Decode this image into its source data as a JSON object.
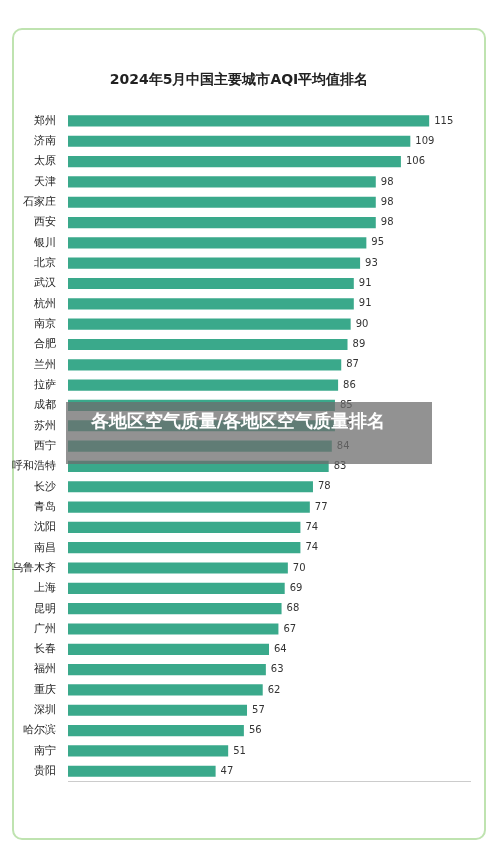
{
  "chart_data": {
    "type": "bar",
    "orientation": "horizontal",
    "title": "2024年5月中国主要城市AQI平均值排名",
    "annotation": "各地区空气质量/各地区空气质量排名",
    "categories": [
      "郑州",
      "济南",
      "太原",
      "天津",
      "石家庄",
      "西安",
      "银川",
      "北京",
      "武汉",
      "杭州",
      "南京",
      "合肥",
      "兰州",
      "拉萨",
      "成都",
      "苏州",
      "西宁",
      "呼和浩特",
      "长沙",
      "青岛",
      "沈阳",
      "南昌",
      "乌鲁木齐",
      "上海",
      "昆明",
      "广州",
      "长春",
      "福州",
      "重庆",
      "深圳",
      "哈尔滨",
      "南宁",
      "贵阳"
    ],
    "values": [
      115,
      109,
      106,
      98,
      98,
      98,
      95,
      93,
      91,
      91,
      90,
      89,
      87,
      86,
      85,
      85,
      84,
      83,
      78,
      77,
      74,
      74,
      70,
      69,
      68,
      67,
      64,
      63,
      62,
      57,
      56,
      51,
      47
    ],
    "color": "#3aa98b",
    "xlim": [
      0,
      128
    ],
    "grid": false,
    "data_labels": true,
    "tick_labels": "y"
  }
}
